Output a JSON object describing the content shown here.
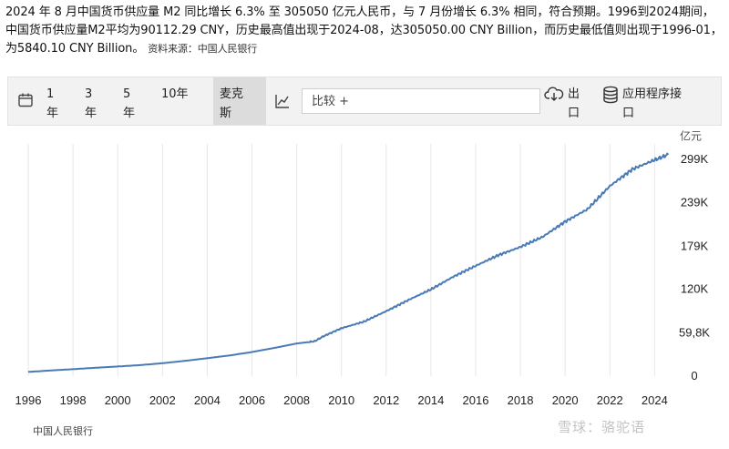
{
  "description": {
    "text": "2024 年 8 月中国货币供应量 M2 同比增长 6.3% 至 305050 亿元人民币，与 7 月份增长 6.3% 相同，符合预期。1996到2024期间，中国货币供应量M2平均为90112.29 CNY，历史最高值出现于2024-08，达305050.00 CNY Billion，而历史最低值则出现于1996-01，为5840.10 CNY Billion。",
    "source": "资料来源：中国人民银行"
  },
  "toolbar": {
    "icons": {
      "calendar": "calendar-icon",
      "chart": "line-chart-icon",
      "download": "cloud-download-icon",
      "api": "database-icon"
    },
    "ranges": [
      "1年",
      "3年",
      "5年",
      "10年",
      "麦克斯"
    ],
    "active_range": "麦克斯",
    "compare_placeholder": "比较 +",
    "export_label": "出口",
    "api_label": "应用程序接口"
  },
  "footer": {
    "source": "中国人民银行",
    "watermark": "雪球：骆驼语"
  },
  "colors": {
    "line": "#4a7ab5",
    "grid": "#e6e6e6",
    "text": "#222222",
    "toolbar_bg": "#f2f2f2"
  },
  "chart_data": {
    "type": "line",
    "unit_label": "亿元",
    "x_ticks": [
      1996,
      1998,
      2000,
      2002,
      2004,
      2006,
      2008,
      2010,
      2012,
      2014,
      2016,
      2018,
      2020,
      2022,
      2024
    ],
    "y_ticks": [
      0,
      59.8,
      120,
      179,
      239,
      299
    ],
    "y_tick_labels": [
      "0",
      "59,8K",
      "120K",
      "179K",
      "239K",
      "299K"
    ],
    "xlim": [
      1996,
      2024.8
    ],
    "ylim": [
      0,
      305
    ],
    "grid": {
      "horizontal": false,
      "vertical": true
    },
    "series": [
      {
        "x": [
          1996.0,
          1997.0,
          1998.0,
          1999.0,
          2000.0,
          2001.0,
          2002.0,
          2003.0,
          2004.0,
          2005.0,
          2006.0,
          2007.0,
          2008.0,
          2008.8,
          2009.2,
          2010.0,
          2011.0,
          2012.0,
          2013.0,
          2014.0,
          2015.0,
          2016.0,
          2017.0,
          2018.0,
          2019.0,
          2020.0,
          2021.0,
          2022.0,
          2023.0,
          2024.0,
          2024.6
        ],
        "y": [
          5.84,
          7.8,
          9.6,
          11.5,
          13.3,
          15.2,
          17.8,
          21.1,
          24.7,
          28.5,
          33.2,
          38.9,
          45.0,
          48.0,
          55.0,
          66.0,
          75.0,
          89.5,
          105.0,
          119.5,
          137.0,
          152.0,
          166.5,
          178.0,
          192.0,
          213.0,
          230.0,
          262.0,
          285.0,
          298.0,
          305.05
        ]
      }
    ]
  }
}
